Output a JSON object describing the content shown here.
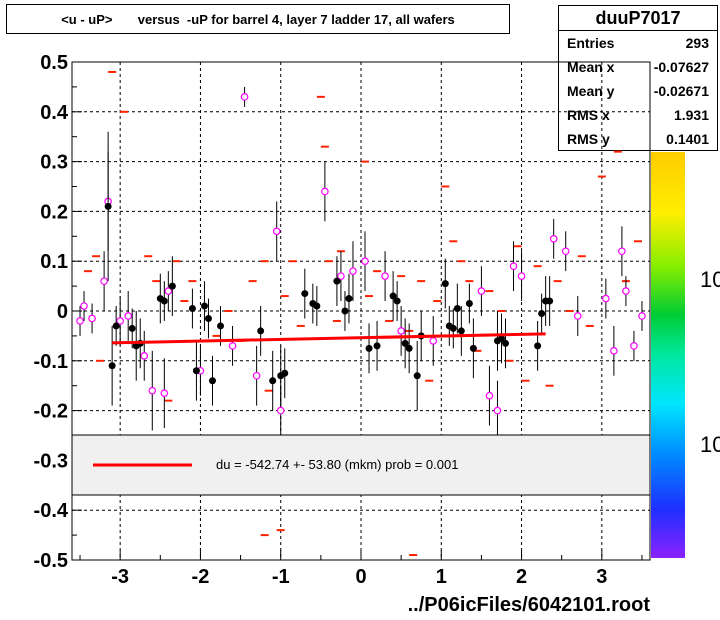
{
  "title": "<u - uP>       versus  -uP for barrel 4, layer 7 ladder 17, all wafers",
  "stats": {
    "name": "duuP7017",
    "rows": [
      {
        "label": "Entries",
        "value": "293"
      },
      {
        "label": "Mean x",
        "value": "-0.07627"
      },
      {
        "label": "Mean y",
        "value": "-0.02671"
      },
      {
        "label": "RMS x",
        "value": "1.931"
      },
      {
        "label": "RMS y",
        "value": "0.1401"
      }
    ]
  },
  "legend_text": "du = -542.74 +- 53.80 (mkm) prob = 0.001",
  "footer": "../P06icFiles/6042101.root",
  "colors": {
    "fit": "#ff0000",
    "profile": "#000000",
    "open": "#ff00ff",
    "mean": "#ff2200"
  },
  "chart_data": {
    "type": "scatter",
    "xlim": [
      -3.6,
      3.6
    ],
    "ylim": [
      -0.5,
      0.5
    ],
    "x_ticks": [
      -3,
      -2,
      -1,
      0,
      1,
      2,
      3
    ],
    "y_ticks": [
      -0.5,
      -0.4,
      -0.3,
      -0.2,
      -0.1,
      0,
      0.1,
      0.2,
      0.3,
      0.4,
      0.5
    ],
    "x_tick_labels": [
      "-3",
      "-2",
      "-1",
      "0",
      "1",
      "2",
      "3"
    ],
    "y_tick_labels": [
      "-0.5",
      "-0.4",
      "-0.3",
      "-0.2",
      "-0.1",
      "0",
      "0.1",
      "0.2",
      "0.3",
      "0.4",
      "0.5"
    ],
    "grid": true,
    "fit_line": {
      "x": [
        -3.1,
        2.3
      ],
      "y": [
        -0.064,
        -0.046
      ]
    },
    "colorbar_labels": [
      "10",
      "10"
    ],
    "profile_points": [
      {
        "x": -3.15,
        "y": 0.21,
        "e": 0.15
      },
      {
        "x": -3.1,
        "y": -0.11,
        "e": 0.08
      },
      {
        "x": -3.05,
        "y": -0.03,
        "e": 0.04
      },
      {
        "x": -2.85,
        "y": -0.035,
        "e": 0.04
      },
      {
        "x": -2.8,
        "y": -0.07,
        "e": 0.07
      },
      {
        "x": -2.75,
        "y": -0.065,
        "e": 0.05
      },
      {
        "x": -2.5,
        "y": 0.025,
        "e": 0.05
      },
      {
        "x": -2.45,
        "y": 0.02,
        "e": 0.04
      },
      {
        "x": -2.35,
        "y": 0.05,
        "e": 0.06
      },
      {
        "x": -2.1,
        "y": 0.005,
        "e": 0.04
      },
      {
        "x": -2.05,
        "y": -0.12,
        "e": 0.06
      },
      {
        "x": -1.95,
        "y": 0.01,
        "e": 0.05
      },
      {
        "x": -1.9,
        "y": -0.015,
        "e": 0.04
      },
      {
        "x": -1.85,
        "y": -0.14,
        "e": 0.05
      },
      {
        "x": -1.75,
        "y": -0.03,
        "e": 0.04
      },
      {
        "x": -1.25,
        "y": -0.04,
        "e": 0.05
      },
      {
        "x": -1.1,
        "y": -0.14,
        "e": 0.06
      },
      {
        "x": -1.0,
        "y": -0.13,
        "e": 0.06
      },
      {
        "x": -0.95,
        "y": -0.125,
        "e": 0.05
      },
      {
        "x": -0.7,
        "y": 0.035,
        "e": 0.05
      },
      {
        "x": -0.6,
        "y": 0.015,
        "e": 0.04
      },
      {
        "x": -0.55,
        "y": 0.01,
        "e": 0.04
      },
      {
        "x": -0.3,
        "y": 0.06,
        "e": 0.05
      },
      {
        "x": -0.2,
        "y": 0.0,
        "e": 0.04
      },
      {
        "x": -0.15,
        "y": 0.025,
        "e": 0.05
      },
      {
        "x": 0.1,
        "y": -0.075,
        "e": 0.05
      },
      {
        "x": 0.2,
        "y": -0.07,
        "e": 0.05
      },
      {
        "x": 0.4,
        "y": 0.03,
        "e": 0.05
      },
      {
        "x": 0.45,
        "y": 0.02,
        "e": 0.04
      },
      {
        "x": 0.55,
        "y": -0.065,
        "e": 0.05
      },
      {
        "x": 0.6,
        "y": -0.075,
        "e": 0.05
      },
      {
        "x": 0.7,
        "y": -0.13,
        "e": 0.07
      },
      {
        "x": 0.75,
        "y": -0.05,
        "e": 0.05
      },
      {
        "x": 1.05,
        "y": 0.055,
        "e": 0.05
      },
      {
        "x": 1.1,
        "y": -0.03,
        "e": 0.04
      },
      {
        "x": 1.15,
        "y": -0.035,
        "e": 0.04
      },
      {
        "x": 1.2,
        "y": 0.005,
        "e": 0.05
      },
      {
        "x": 1.25,
        "y": -0.04,
        "e": 0.05
      },
      {
        "x": 1.35,
        "y": 0.015,
        "e": 0.04
      },
      {
        "x": 1.4,
        "y": -0.075,
        "e": 0.06
      },
      {
        "x": 1.7,
        "y": -0.06,
        "e": 0.06
      },
      {
        "x": 1.75,
        "y": -0.055,
        "e": 0.05
      },
      {
        "x": 1.8,
        "y": -0.065,
        "e": 0.05
      },
      {
        "x": 2.2,
        "y": -0.07,
        "e": 0.05
      },
      {
        "x": 2.25,
        "y": -0.005,
        "e": 0.04
      },
      {
        "x": 2.3,
        "y": 0.02,
        "e": 0.05
      },
      {
        "x": 2.35,
        "y": 0.02,
        "e": 0.05
      }
    ],
    "open_points": [
      {
        "x": -3.5,
        "y": -0.02,
        "e": 0.03
      },
      {
        "x": -3.45,
        "y": 0.01,
        "e": 0.03
      },
      {
        "x": -3.35,
        "y": -0.015,
        "e": 0.03
      },
      {
        "x": -3.2,
        "y": 0.06,
        "e": 0.06
      },
      {
        "x": -3.15,
        "y": 0.22,
        "e": 0.1
      },
      {
        "x": -3.0,
        "y": -0.02,
        "e": 0.05
      },
      {
        "x": -2.9,
        "y": -0.01,
        "e": 0.05
      },
      {
        "x": -2.7,
        "y": -0.09,
        "e": 0.05
      },
      {
        "x": -2.6,
        "y": -0.16,
        "e": 0.08
      },
      {
        "x": -2.45,
        "y": -0.165,
        "e": 0.07
      },
      {
        "x": -2.4,
        "y": 0.04,
        "e": 0.04
      },
      {
        "x": -2.0,
        "y": -0.12,
        "e": 0.05
      },
      {
        "x": -1.6,
        "y": -0.07,
        "e": 0.04
      },
      {
        "x": -1.45,
        "y": 0.43,
        "e": 0.02
      },
      {
        "x": -1.3,
        "y": -0.13,
        "e": 0.06
      },
      {
        "x": -1.05,
        "y": 0.16,
        "e": 0.06
      },
      {
        "x": -1.0,
        "y": -0.2,
        "e": 0.05
      },
      {
        "x": -0.45,
        "y": 0.24,
        "e": 0.06
      },
      {
        "x": -0.25,
        "y": 0.07,
        "e": 0.05
      },
      {
        "x": -0.1,
        "y": 0.08,
        "e": 0.06
      },
      {
        "x": 0.05,
        "y": 0.1,
        "e": 0.06
      },
      {
        "x": 0.3,
        "y": 0.07,
        "e": 0.05
      },
      {
        "x": 0.5,
        "y": -0.04,
        "e": 0.05
      },
      {
        "x": 0.9,
        "y": -0.06,
        "e": 0.05
      },
      {
        "x": 1.5,
        "y": 0.04,
        "e": 0.05
      },
      {
        "x": 1.6,
        "y": -0.17,
        "e": 0.06
      },
      {
        "x": 1.7,
        "y": -0.2,
        "e": 0.06
      },
      {
        "x": 1.9,
        "y": 0.09,
        "e": 0.05
      },
      {
        "x": 2.0,
        "y": 0.07,
        "e": 0.05
      },
      {
        "x": 2.4,
        "y": 0.145,
        "e": 0.04
      },
      {
        "x": 2.55,
        "y": 0.12,
        "e": 0.04
      },
      {
        "x": 2.7,
        "y": -0.01,
        "e": 0.04
      },
      {
        "x": 3.05,
        "y": 0.025,
        "e": 0.04
      },
      {
        "x": 3.15,
        "y": -0.08,
        "e": 0.05
      },
      {
        "x": 3.25,
        "y": 0.12,
        "e": 0.05
      },
      {
        "x": 3.3,
        "y": 0.04,
        "e": 0.03
      },
      {
        "x": 3.4,
        "y": -0.07,
        "e": 0.03
      },
      {
        "x": 3.5,
        "y": -0.01,
        "e": 0.03
      }
    ],
    "mean_marks": [
      {
        "x": -3.1,
        "y": 0.48
      },
      {
        "x": -2.95,
        "y": 0.4
      },
      {
        "x": -3.4,
        "y": 0.08
      },
      {
        "x": -3.3,
        "y": 0.11
      },
      {
        "x": -3.25,
        "y": -0.1
      },
      {
        "x": -2.65,
        "y": 0.11
      },
      {
        "x": -2.55,
        "y": 0.06
      },
      {
        "x": -2.4,
        "y": -0.18
      },
      {
        "x": -2.3,
        "y": 0.1
      },
      {
        "x": -2.2,
        "y": 0.02
      },
      {
        "x": -2.1,
        "y": 0.06
      },
      {
        "x": -1.8,
        "y": -0.05
      },
      {
        "x": -1.65,
        "y": 0.0
      },
      {
        "x": -1.5,
        "y": -0.06
      },
      {
        "x": -1.35,
        "y": 0.06
      },
      {
        "x": -1.2,
        "y": 0.1
      },
      {
        "x": -1.15,
        "y": -0.16
      },
      {
        "x": -0.95,
        "y": 0.03
      },
      {
        "x": -0.85,
        "y": 0.1
      },
      {
        "x": -0.75,
        "y": -0.03
      },
      {
        "x": -0.5,
        "y": 0.43
      },
      {
        "x": -0.45,
        "y": 0.33
      },
      {
        "x": -0.4,
        "y": 0.1
      },
      {
        "x": -0.3,
        "y": -0.02
      },
      {
        "x": -0.25,
        "y": 0.12
      },
      {
        "x": 0.05,
        "y": 0.3
      },
      {
        "x": 0.1,
        "y": 0.03
      },
      {
        "x": 0.2,
        "y": 0.08
      },
      {
        "x": 0.35,
        "y": -0.02
      },
      {
        "x": 0.5,
        "y": 0.07
      },
      {
        "x": 0.6,
        "y": -0.04
      },
      {
        "x": 0.75,
        "y": 0.06
      },
      {
        "x": 0.85,
        "y": -0.14
      },
      {
        "x": 0.95,
        "y": 0.02
      },
      {
        "x": 1.05,
        "y": 0.25
      },
      {
        "x": 1.15,
        "y": 0.14
      },
      {
        "x": 1.25,
        "y": 0.1
      },
      {
        "x": 1.35,
        "y": 0.06
      },
      {
        "x": 1.45,
        "y": -0.08
      },
      {
        "x": 1.6,
        "y": 0.04
      },
      {
        "x": 1.75,
        "y": 0.0
      },
      {
        "x": 1.85,
        "y": -0.1
      },
      {
        "x": 1.95,
        "y": 0.13
      },
      {
        "x": 2.05,
        "y": -0.14
      },
      {
        "x": 2.2,
        "y": 0.09
      },
      {
        "x": 2.35,
        "y": -0.15
      },
      {
        "x": 2.45,
        "y": 0.06
      },
      {
        "x": 2.6,
        "y": 0.0
      },
      {
        "x": 2.75,
        "y": 0.11
      },
      {
        "x": 2.85,
        "y": -0.03
      },
      {
        "x": 3.0,
        "y": 0.27
      },
      {
        "x": 3.2,
        "y": 0.32
      },
      {
        "x": 3.3,
        "y": 0.06
      },
      {
        "x": 3.45,
        "y": 0.14
      },
      {
        "x": -1.0,
        "y": -0.44
      },
      {
        "x": -1.2,
        "y": -0.45
      },
      {
        "x": 0.65,
        "y": -0.49
      }
    ]
  }
}
